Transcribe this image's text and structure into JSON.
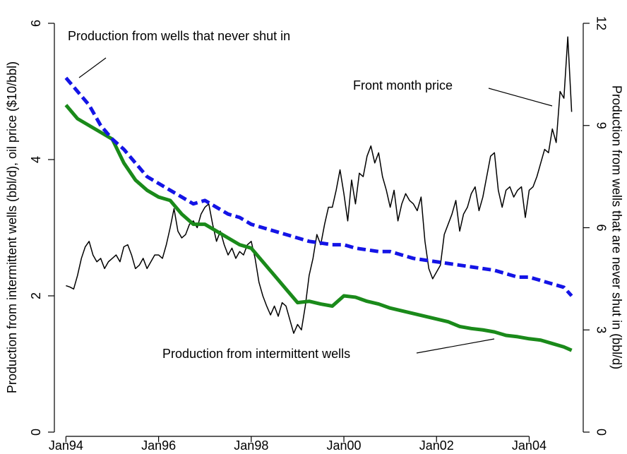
{
  "chart_data": {
    "type": "line",
    "ylabel": "Production from intermittent wells (bbl/d), oil price ($10/bbl)",
    "y2label": "Production from wells that are never shut in (bbl/d)",
    "xlim": [
      "1993-10",
      "2005-03"
    ],
    "xticks": [
      {
        "value": "1994-01",
        "label": "Jan94"
      },
      {
        "value": "1996-01",
        "label": "Jan96"
      },
      {
        "value": "1998-01",
        "label": "Jan98"
      },
      {
        "value": "2000-01",
        "label": "Jan00"
      },
      {
        "value": "2002-01",
        "label": "Jan02"
      },
      {
        "value": "2004-01",
        "label": "Jan04"
      }
    ],
    "ylim": [
      0,
      6
    ],
    "yticks": [
      0,
      2,
      4,
      6
    ],
    "y2lim": [
      0,
      12
    ],
    "y2ticks": [
      0,
      3,
      6,
      9,
      12
    ],
    "annotations": [
      "Production from wells that never shut in",
      "Front month price",
      "Production from intermittent wells"
    ],
    "series": [
      {
        "name": "Front month price",
        "color": "#000000",
        "axis": "y",
        "x": [
          "1994-01",
          "1994-02",
          "1994-03",
          "1994-04",
          "1994-05",
          "1994-06",
          "1994-07",
          "1994-08",
          "1994-09",
          "1994-10",
          "1994-11",
          "1994-12",
          "1995-01",
          "1995-02",
          "1995-03",
          "1995-04",
          "1995-05",
          "1995-06",
          "1995-07",
          "1995-08",
          "1995-09",
          "1995-10",
          "1995-11",
          "1995-12",
          "1996-01",
          "1996-02",
          "1996-03",
          "1996-04",
          "1996-05",
          "1996-06",
          "1996-07",
          "1996-08",
          "1996-09",
          "1996-10",
          "1996-11",
          "1996-12",
          "1997-01",
          "1997-02",
          "1997-03",
          "1997-04",
          "1997-05",
          "1997-06",
          "1997-07",
          "1997-08",
          "1997-09",
          "1997-10",
          "1997-11",
          "1997-12",
          "1998-01",
          "1998-02",
          "1998-03",
          "1998-04",
          "1998-05",
          "1998-06",
          "1998-07",
          "1998-08",
          "1998-09",
          "1998-10",
          "1998-11",
          "1998-12",
          "1999-01",
          "1999-02",
          "1999-03",
          "1999-04",
          "1999-05",
          "1999-06",
          "1999-07",
          "1999-08",
          "1999-09",
          "1999-10",
          "1999-11",
          "1999-12",
          "2000-01",
          "2000-02",
          "2000-03",
          "2000-04",
          "2000-05",
          "2000-06",
          "2000-07",
          "2000-08",
          "2000-09",
          "2000-10",
          "2000-11",
          "2000-12",
          "2001-01",
          "2001-02",
          "2001-03",
          "2001-04",
          "2001-05",
          "2001-06",
          "2001-07",
          "2001-08",
          "2001-09",
          "2001-10",
          "2001-11",
          "2001-12",
          "2002-01",
          "2002-02",
          "2002-03",
          "2002-04",
          "2002-05",
          "2002-06",
          "2002-07",
          "2002-08",
          "2002-09",
          "2002-10",
          "2002-11",
          "2002-12",
          "2003-01",
          "2003-02",
          "2003-03",
          "2003-04",
          "2003-05",
          "2003-06",
          "2003-07",
          "2003-08",
          "2003-09",
          "2003-10",
          "2003-11",
          "2003-12",
          "2004-01",
          "2004-02",
          "2004-03",
          "2004-04",
          "2004-05",
          "2004-06",
          "2004-07",
          "2004-08",
          "2004-09",
          "2004-10",
          "2004-11",
          "2004-12"
        ],
        "values": [
          2.15,
          2.13,
          2.1,
          2.3,
          2.55,
          2.72,
          2.8,
          2.6,
          2.5,
          2.55,
          2.4,
          2.5,
          2.55,
          2.6,
          2.5,
          2.72,
          2.75,
          2.6,
          2.4,
          2.45,
          2.55,
          2.4,
          2.5,
          2.6,
          2.6,
          2.55,
          2.75,
          3.0,
          3.28,
          2.95,
          2.85,
          2.9,
          3.05,
          3.1,
          3.0,
          3.2,
          3.3,
          3.35,
          3.05,
          2.8,
          2.95,
          2.75,
          2.6,
          2.7,
          2.55,
          2.65,
          2.6,
          2.75,
          2.8,
          2.55,
          2.2,
          2.0,
          1.85,
          1.72,
          1.85,
          1.7,
          1.9,
          1.85,
          1.65,
          1.45,
          1.58,
          1.5,
          1.85,
          2.3,
          2.55,
          2.9,
          2.75,
          3.05,
          3.3,
          3.3,
          3.55,
          3.85,
          3.5,
          3.1,
          3.7,
          3.35,
          3.8,
          3.75,
          4.05,
          4.2,
          3.95,
          4.1,
          3.75,
          3.55,
          3.3,
          3.55,
          3.1,
          3.35,
          3.5,
          3.4,
          3.35,
          3.25,
          3.45,
          2.8,
          2.4,
          2.25,
          2.35,
          2.45,
          2.9,
          3.05,
          3.2,
          3.4,
          2.95,
          3.2,
          3.3,
          3.5,
          3.6,
          3.25,
          3.45,
          3.75,
          4.05,
          4.1,
          3.55,
          3.3,
          3.55,
          3.6,
          3.45,
          3.55,
          3.6,
          3.15,
          3.55,
          3.6,
          3.75,
          3.95,
          4.15,
          4.1,
          4.45,
          4.25,
          5.0,
          4.9,
          5.8,
          4.7
        ]
      },
      {
        "name": "Production from intermittent wells",
        "color": "#1a8a1a",
        "axis": "y",
        "x": [
          "1994-01",
          "1994-04",
          "1994-07",
          "1994-10",
          "1995-01",
          "1995-04",
          "1995-07",
          "1995-10",
          "1996-01",
          "1996-04",
          "1996-07",
          "1996-10",
          "1997-01",
          "1997-04",
          "1997-07",
          "1997-10",
          "1998-01",
          "1998-04",
          "1998-07",
          "1998-10",
          "1999-01",
          "1999-04",
          "1999-07",
          "1999-10",
          "2000-01",
          "2000-04",
          "2000-07",
          "2000-10",
          "2001-01",
          "2001-04",
          "2001-07",
          "2001-10",
          "2002-01",
          "2002-04",
          "2002-07",
          "2002-10",
          "2003-01",
          "2003-04",
          "2003-07",
          "2003-10",
          "2004-01",
          "2004-04",
          "2004-07",
          "2004-10",
          "2004-12"
        ],
        "values": [
          4.8,
          4.6,
          4.5,
          4.4,
          4.3,
          3.95,
          3.7,
          3.55,
          3.45,
          3.4,
          3.2,
          3.05,
          3.05,
          2.95,
          2.85,
          2.75,
          2.7,
          2.5,
          2.3,
          2.1,
          1.9,
          1.92,
          1.88,
          1.85,
          2.0,
          1.98,
          1.92,
          1.88,
          1.82,
          1.78,
          1.74,
          1.7,
          1.66,
          1.62,
          1.55,
          1.52,
          1.5,
          1.47,
          1.42,
          1.4,
          1.37,
          1.35,
          1.3,
          1.25,
          1.2
        ]
      },
      {
        "name": "Production from wells that never shut in",
        "color": "#1414e6",
        "axis": "y2",
        "dashed": true,
        "x": [
          "1994-01",
          "1994-04",
          "1994-07",
          "1994-10",
          "1995-01",
          "1995-04",
          "1995-07",
          "1995-10",
          "1996-01",
          "1996-04",
          "1996-07",
          "1996-10",
          "1997-01",
          "1997-04",
          "1997-07",
          "1997-10",
          "1998-01",
          "1998-04",
          "1998-07",
          "1998-10",
          "1999-01",
          "1999-04",
          "1999-07",
          "1999-10",
          "2000-01",
          "2000-04",
          "2000-07",
          "2000-10",
          "2001-01",
          "2001-04",
          "2001-07",
          "2001-10",
          "2002-01",
          "2002-04",
          "2002-07",
          "2002-10",
          "2003-01",
          "2003-04",
          "2003-07",
          "2003-10",
          "2004-01",
          "2004-04",
          "2004-07",
          "2004-10",
          "2004-12"
        ],
        "values": [
          10.4,
          10.0,
          9.6,
          9.0,
          8.6,
          8.3,
          7.9,
          7.5,
          7.3,
          7.1,
          6.9,
          6.7,
          6.8,
          6.6,
          6.4,
          6.3,
          6.1,
          6.0,
          5.9,
          5.8,
          5.7,
          5.6,
          5.55,
          5.5,
          5.5,
          5.4,
          5.35,
          5.3,
          5.3,
          5.2,
          5.1,
          5.05,
          5.0,
          4.95,
          4.9,
          4.85,
          4.8,
          4.75,
          4.65,
          4.55,
          4.55,
          4.45,
          4.35,
          4.25,
          4.0
        ]
      }
    ]
  }
}
